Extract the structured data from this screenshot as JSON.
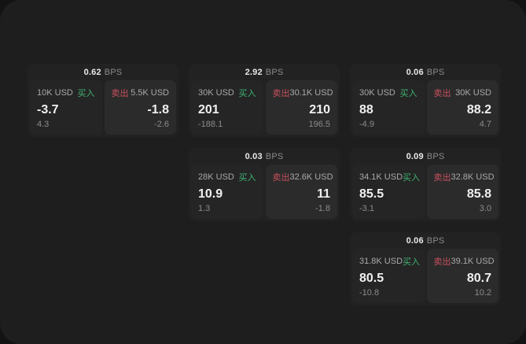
{
  "labels": {
    "bps_suffix": "BPS",
    "buy": "买入",
    "sell": "卖出"
  },
  "colors": {
    "backdrop": "#131313",
    "surface": "#1e1e1e",
    "card_bg": "#222222",
    "buy_panel_bg": "#252525",
    "sell_panel_bg": "#2b2b2b",
    "buy_green": "#3fb372",
    "sell_red": "#c8505e",
    "value_text": "#f0f0f0",
    "muted_text": "#8b8b8b"
  },
  "cards": [
    {
      "bps": "0.62",
      "buy": {
        "size": "10K USD",
        "price": "-3.7",
        "delta": "4.3"
      },
      "sell": {
        "size": "5.5K USD",
        "price": "-1.8",
        "delta": "-2.6"
      }
    },
    {
      "bps": "2.92",
      "buy": {
        "size": "30K USD",
        "price": "201",
        "delta": "-188.1"
      },
      "sell": {
        "size": "30.1K USD",
        "price": "210",
        "delta": "196.5"
      }
    },
    {
      "bps": "0.06",
      "buy": {
        "size": "30K USD",
        "price": "88",
        "delta": "-4.9"
      },
      "sell": {
        "size": "30K USD",
        "price": "88.2",
        "delta": "4.7"
      }
    },
    {
      "bps": "0.03",
      "buy": {
        "size": "28K USD",
        "price": "10.9",
        "delta": "1.3"
      },
      "sell": {
        "size": "32.6K USD",
        "price": "11",
        "delta": "-1.8"
      }
    },
    {
      "bps": "0.09",
      "buy": {
        "size": "34.1K USD",
        "price": "85.5",
        "delta": "-3.1"
      },
      "sell": {
        "size": "32.8K USD",
        "price": "85.8",
        "delta": "3.0"
      }
    },
    {
      "bps": "0.06",
      "buy": {
        "size": "31.8K USD",
        "price": "80.5",
        "delta": "-10.8"
      },
      "sell": {
        "size": "39.1K USD",
        "price": "80.7",
        "delta": "10.2"
      }
    }
  ]
}
